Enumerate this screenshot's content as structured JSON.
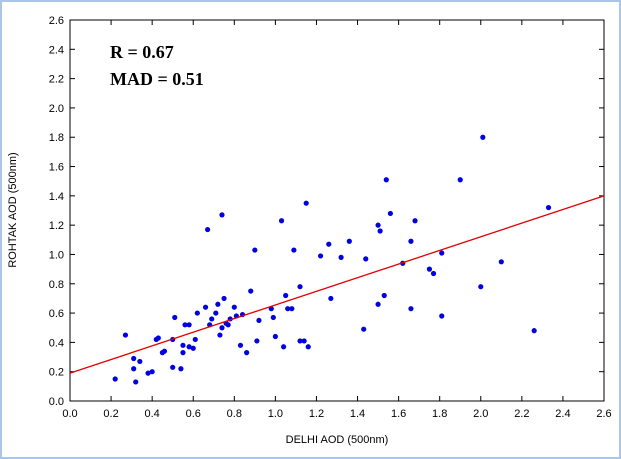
{
  "chart_data": {
    "type": "scatter",
    "xlabel": "DELHI AOD (500nm)",
    "ylabel": "ROHTAK AOD (500nm)",
    "annotations": [
      "R = 0.67",
      "MAD = 0.51"
    ],
    "xlim": [
      0,
      2.6
    ],
    "ylim": [
      0,
      2.6
    ],
    "xticks": [
      {
        "value": 0,
        "label": "0.0"
      },
      0.2,
      0.4,
      0.6,
      0.8,
      {
        "value": 1,
        "label": "1.0"
      },
      1.2,
      1.4,
      1.6,
      1.8,
      {
        "value": 2,
        "label": "2.0"
      },
      2.2,
      2.4,
      2.6
    ],
    "yticks": [
      {
        "value": 0,
        "label": "0.0"
      },
      0.2,
      0.4,
      0.6,
      0.8,
      {
        "value": 1,
        "label": "1.0"
      },
      1.2,
      1.4,
      1.6,
      1.8,
      {
        "value": 2,
        "label": "2.0"
      },
      2.2,
      2.4,
      2.6
    ],
    "series": [
      {
        "color": "#0000e0",
        "x": [
          0.22,
          0.27,
          0.31,
          0.31,
          0.32,
          0.34,
          0.38,
          0.4,
          0.42,
          0.43,
          0.45,
          0.46,
          0.5,
          0.5,
          0.51,
          0.54,
          0.55,
          0.55,
          0.56,
          0.58,
          0.58,
          0.6,
          0.61,
          0.62,
          0.66,
          0.67,
          0.68,
          0.69,
          0.71,
          0.72,
          0.73,
          0.74,
          0.74,
          0.75,
          0.76,
          0.77,
          0.78,
          0.8,
          0.81,
          0.83,
          0.84,
          0.86,
          0.88,
          0.9,
          0.91,
          0.92,
          0.98,
          0.99,
          1.0,
          1.03,
          1.04,
          1.05,
          1.06,
          1.08,
          1.09,
          1.12,
          1.12,
          1.14,
          1.15,
          1.16,
          1.22,
          1.26,
          1.27,
          1.32,
          1.36,
          1.43,
          1.44,
          1.5,
          1.5,
          1.51,
          1.53,
          1.54,
          1.56,
          1.62,
          1.66,
          1.66,
          1.68,
          1.75,
          1.77,
          1.81,
          1.81,
          1.9,
          2.0,
          2.01,
          2.1,
          2.26,
          2.33
        ],
        "values": [
          0.15,
          0.45,
          0.29,
          0.22,
          0.13,
          0.27,
          0.19,
          0.2,
          0.42,
          0.43,
          0.33,
          0.34,
          0.42,
          0.23,
          0.57,
          0.22,
          0.38,
          0.33,
          0.52,
          0.52,
          0.37,
          0.36,
          0.42,
          0.6,
          0.64,
          1.17,
          0.52,
          0.56,
          0.6,
          0.66,
          0.45,
          1.27,
          0.5,
          0.7,
          0.53,
          0.52,
          0.56,
          0.64,
          0.58,
          0.38,
          0.59,
          0.33,
          0.75,
          1.03,
          0.41,
          0.55,
          0.63,
          0.57,
          0.44,
          1.23,
          0.37,
          0.72,
          0.63,
          0.63,
          1.03,
          0.78,
          0.41,
          0.41,
          1.35,
          0.37,
          0.99,
          1.07,
          0.7,
          0.98,
          1.09,
          0.49,
          0.97,
          0.66,
          1.2,
          1.16,
          0.72,
          1.51,
          1.28,
          0.94,
          0.63,
          1.09,
          1.23,
          0.9,
          0.87,
          1.01,
          0.58,
          1.51,
          0.78,
          1.8,
          0.95,
          0.48,
          1.32
        ]
      }
    ],
    "fit_line": {
      "color": "#e00000",
      "x": [
        0,
        2.6
      ],
      "values": [
        0.19,
        1.4
      ]
    }
  }
}
